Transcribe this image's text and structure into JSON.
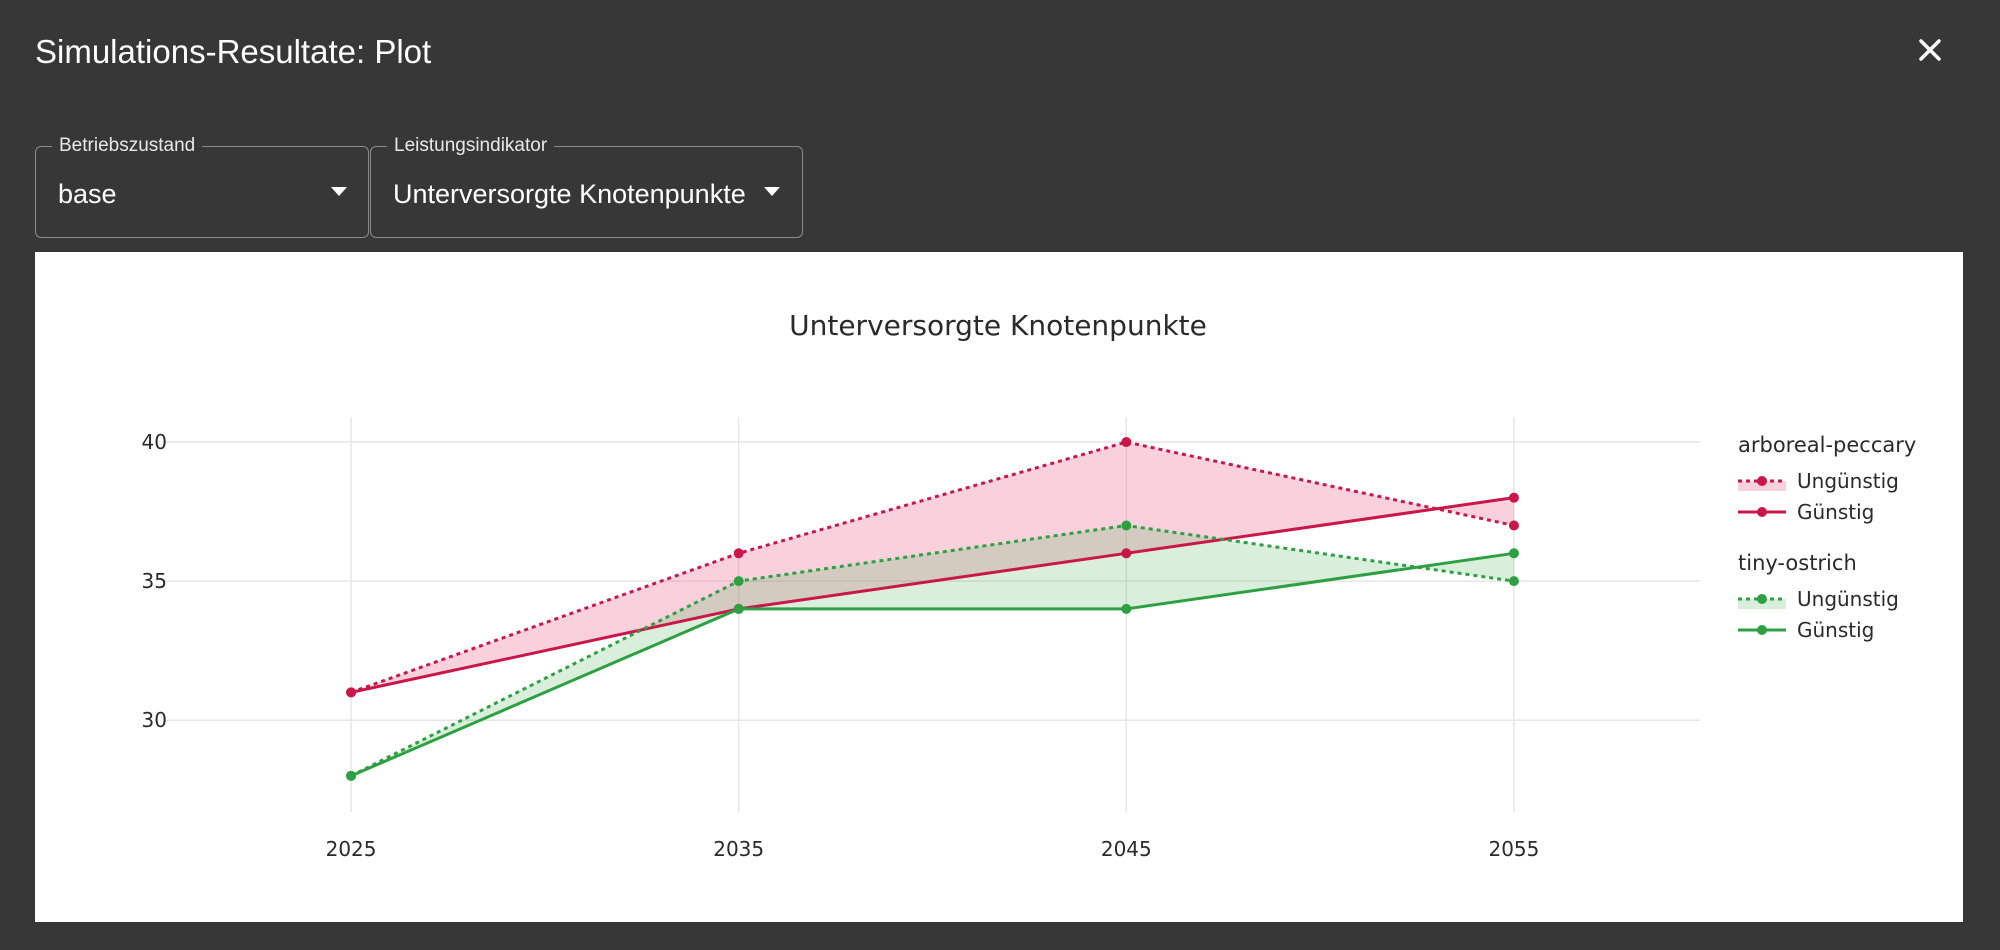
{
  "dialog": {
    "title": "Simulations-Resultate: Plot",
    "close_icon": "close-icon"
  },
  "filters": {
    "operating_state": {
      "label": "Betriebszustand",
      "value": "base"
    },
    "indicator": {
      "label": "Leistungsindikator",
      "value": "Unterversorgte Knotenpunkte"
    }
  },
  "chart_data": {
    "type": "line",
    "title": "Unterversorgte Knotenpunkte",
    "xlabel": "",
    "ylabel": "",
    "x": [
      2025,
      2035,
      2045,
      2055
    ],
    "x_ticks": [
      "2025",
      "2035",
      "2045",
      "2055"
    ],
    "y_ticks": [
      "30",
      "35",
      "40"
    ],
    "xlim": [
      2020.2,
      2059.8
    ],
    "ylim": [
      26.7,
      40.9
    ],
    "grid": true,
    "legend_position": "right",
    "groups": [
      {
        "name": "arboreal-peccary",
        "color": "#c9174a",
        "fill_color": "rgba(232,72,118,0.25)",
        "series": [
          {
            "name": "Ungünstig",
            "style": "dotted",
            "values": [
              31,
              36,
              40,
              37
            ]
          },
          {
            "name": "Günstig",
            "style": "solid",
            "values": [
              31,
              34,
              36,
              38
            ]
          }
        ]
      },
      {
        "name": "tiny-ostrich",
        "color": "#2ea043",
        "fill_color": "rgba(80,180,90,0.22)",
        "series": [
          {
            "name": "Ungünstig",
            "style": "dotted",
            "values": [
              28,
              35,
              37,
              35
            ]
          },
          {
            "name": "Günstig",
            "style": "solid",
            "values": [
              28,
              34,
              34,
              36
            ]
          }
        ]
      }
    ]
  }
}
